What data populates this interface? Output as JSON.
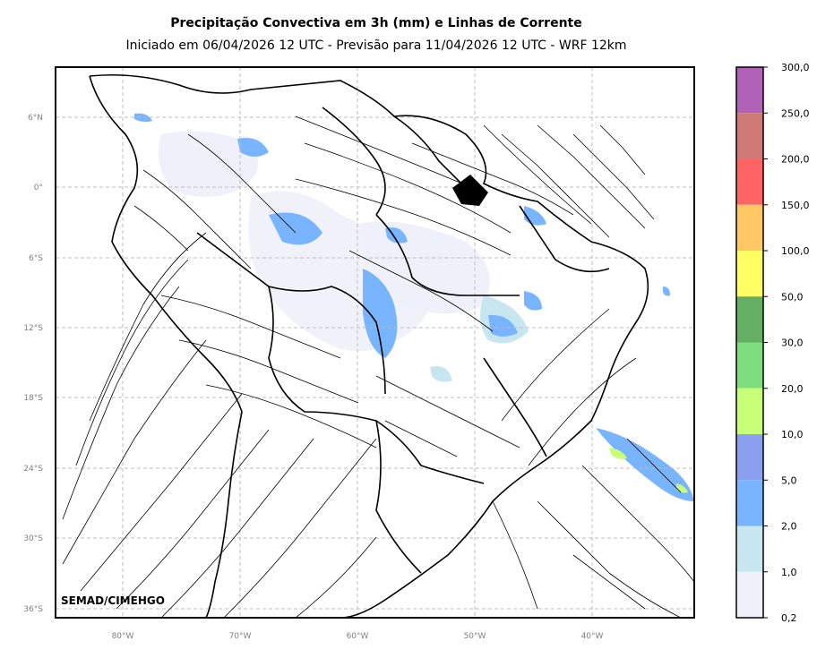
{
  "header": {
    "title": "Precipitação Convectiva em 3h (mm) e Linhas de Corrente",
    "subtitle": "Iniciado em 06/04/2026 12 UTC - Previsão para 11/04/2026 12 UTC - WRF 12km"
  },
  "map": {
    "credit": "SEMAD/CIMEHGO",
    "lat_labels": [
      "6°N",
      "0°",
      "6°S",
      "12°S",
      "18°S",
      "24°S",
      "30°S",
      "36°S"
    ],
    "lon_labels": [
      "80°W",
      "70°W",
      "60°W",
      "50°W",
      "40°W"
    ]
  },
  "colorbar": {
    "labels": [
      "300,0",
      "250,0",
      "200,0",
      "150,0",
      "100,0",
      "50,0",
      "30,0",
      "20,0",
      "10,0",
      "5,0",
      "2,0",
      "1,0",
      "0,2"
    ],
    "colors": [
      "#b061b8",
      "#d07a78",
      "#ff6464",
      "#ffc864",
      "#ffff64",
      "#64af64",
      "#7ddc7d",
      "#c8ff78",
      "#8ca0f0",
      "#78b4ff",
      "#c8e6f0",
      "#f0f0fa"
    ]
  }
}
